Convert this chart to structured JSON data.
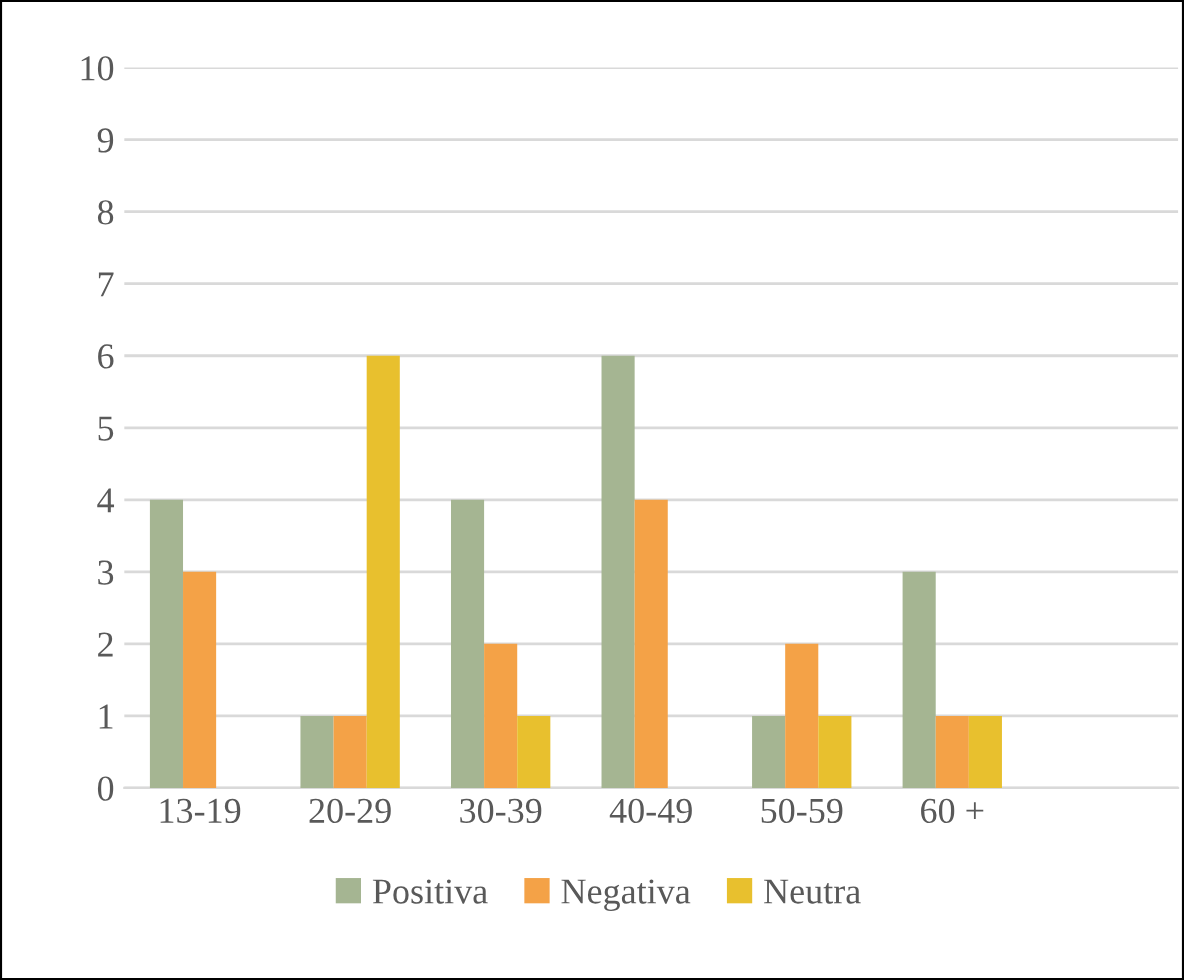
{
  "chart_data": {
    "type": "bar",
    "categories": [
      "13-19",
      "20-29",
      "30-39",
      "40-49",
      "50-59",
      "60 +",
      null
    ],
    "series": [
      {
        "name": "Positiva",
        "color": "#a5b592",
        "values": [
          4,
          1,
          4,
          6,
          1,
          3,
          null
        ]
      },
      {
        "name": "Negativa",
        "color": "#f4a247",
        "values": [
          3,
          1,
          2,
          4,
          2,
          1,
          null
        ]
      },
      {
        "name": "Neutra",
        "color": "#e8c02e",
        "values": [
          0,
          6,
          1,
          0,
          1,
          1,
          null
        ]
      }
    ],
    "ylim": [
      0,
      10
    ],
    "yticks": [
      0,
      1,
      2,
      3,
      4,
      5,
      6,
      7,
      8,
      9,
      10
    ],
    "grid": "y",
    "legend": "bottom"
  }
}
